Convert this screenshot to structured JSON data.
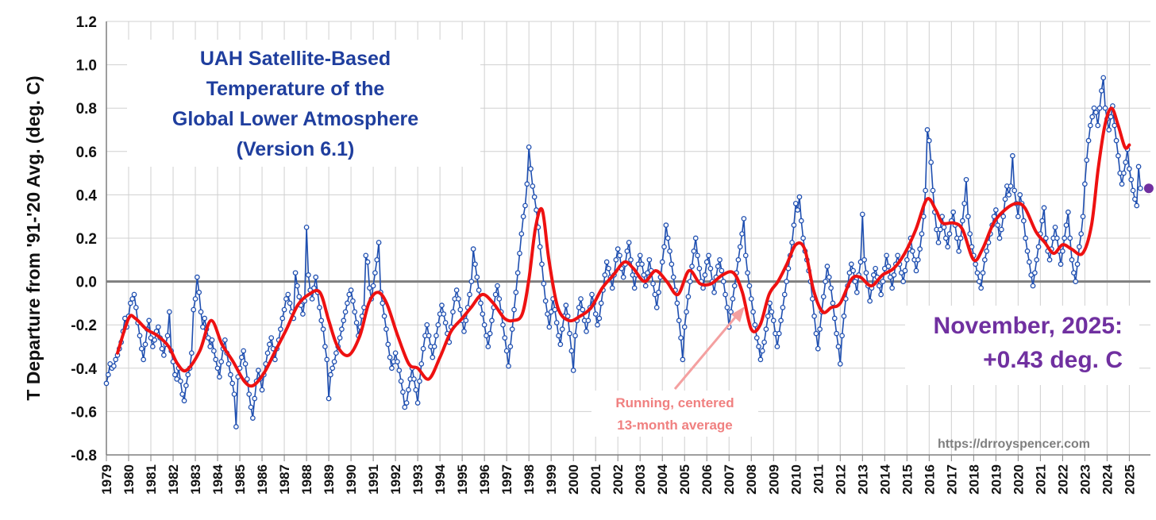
{
  "chart_data": {
    "type": "line",
    "title_lines": [
      "UAH Satellite-Based",
      "Temperature of the",
      "Global Lower Atmosphere",
      "(Version 6.1)"
    ],
    "ylabel": "T Departure from '91-'20 Avg. (deg. C)",
    "xlabel": "",
    "ylim": [
      -0.8,
      1.2
    ],
    "yticks": [
      "-0.8",
      "-0.6",
      "-0.4",
      "-0.2",
      "0.0",
      "0.2",
      "0.4",
      "0.6",
      "0.8",
      "1.0",
      "1.2"
    ],
    "xticks": [
      "1979",
      "1980",
      "1981",
      "1982",
      "1983",
      "1984",
      "1985",
      "1986",
      "1987",
      "1988",
      "1989",
      "1990",
      "1991",
      "1992",
      "1993",
      "1994",
      "1995",
      "1996",
      "1997",
      "1998",
      "1999",
      "2000",
      "2001",
      "2002",
      "2003",
      "2004",
      "2005",
      "2006",
      "2007",
      "2008",
      "2009",
      "2010",
      "2011",
      "2012",
      "2013",
      "2014",
      "2015",
      "2016",
      "2017",
      "2018",
      "2019",
      "2020",
      "2021",
      "2022",
      "2023",
      "2024",
      "2025"
    ],
    "xlim": [
      1979.0,
      2025.95
    ],
    "grid": true,
    "latest": {
      "label_line1": "November, 2025:",
      "label_line2": "+0.43 deg. C",
      "x": 2025.875,
      "value": 0.43,
      "color": "#7030a0"
    },
    "running_label_lines": [
      "Running, centered",
      "13-month average"
    ],
    "url": "https://drroyspencer.com",
    "colors": {
      "monthly": "#1f4fb0",
      "smooth": "#ee1111",
      "axis": "#7f7f7f",
      "grid": "#d0d0d0",
      "arrow": "#f4a0a0"
    },
    "series": [
      {
        "name": "Monthly anomaly",
        "start_year": 1979.0,
        "step": 0.08333333,
        "values": [
          -0.47,
          -0.43,
          -0.38,
          -0.4,
          -0.39,
          -0.36,
          -0.34,
          -0.31,
          -0.28,
          -0.23,
          -0.17,
          -0.21,
          -0.16,
          -0.1,
          -0.08,
          -0.06,
          -0.12,
          -0.19,
          -0.25,
          -0.31,
          -0.36,
          -0.29,
          -0.22,
          -0.18,
          -0.26,
          -0.3,
          -0.27,
          -0.23,
          -0.21,
          -0.26,
          -0.31,
          -0.34,
          -0.29,
          -0.25,
          -0.14,
          -0.32,
          -0.37,
          -0.43,
          -0.45,
          -0.4,
          -0.46,
          -0.52,
          -0.55,
          -0.48,
          -0.43,
          -0.4,
          -0.33,
          -0.13,
          -0.08,
          0.02,
          -0.05,
          -0.14,
          -0.21,
          -0.17,
          -0.22,
          -0.26,
          -0.3,
          -0.27,
          -0.32,
          -0.36,
          -0.4,
          -0.44,
          -0.37,
          -0.31,
          -0.27,
          -0.33,
          -0.38,
          -0.43,
          -0.47,
          -0.52,
          -0.67,
          -0.44,
          -0.4,
          -0.35,
          -0.32,
          -0.38,
          -0.45,
          -0.52,
          -0.58,
          -0.63,
          -0.54,
          -0.46,
          -0.41,
          -0.45,
          -0.5,
          -0.43,
          -0.38,
          -0.33,
          -0.29,
          -0.26,
          -0.31,
          -0.36,
          -0.31,
          -0.27,
          -0.22,
          -0.17,
          -0.13,
          -0.08,
          -0.06,
          -0.1,
          -0.14,
          -0.17,
          0.04,
          -0.02,
          -0.07,
          -0.11,
          -0.15,
          -0.09,
          0.25,
          0.03,
          -0.04,
          -0.08,
          -0.03,
          0.02,
          -0.05,
          -0.12,
          -0.18,
          -0.22,
          -0.3,
          -0.36,
          -0.54,
          -0.43,
          -0.4,
          -0.37,
          -0.33,
          -0.3,
          -0.26,
          -0.22,
          -0.18,
          -0.14,
          -0.1,
          -0.06,
          -0.04,
          -0.09,
          -0.14,
          -0.19,
          -0.25,
          -0.21,
          -0.16,
          -0.12,
          0.12,
          0.09,
          -0.03,
          -0.08,
          -0.02,
          0.04,
          0.1,
          0.18,
          -0.05,
          -0.1,
          -0.16,
          -0.22,
          -0.29,
          -0.35,
          -0.4,
          -0.37,
          -0.33,
          -0.37,
          -0.41,
          -0.46,
          -0.51,
          -0.58,
          -0.56,
          -0.5,
          -0.45,
          -0.4,
          -0.45,
          -0.5,
          -0.56,
          -0.46,
          -0.38,
          -0.31,
          -0.25,
          -0.2,
          -0.25,
          -0.3,
          -0.35,
          -0.3,
          -0.25,
          -0.2,
          -0.15,
          -0.11,
          -0.15,
          -0.19,
          -0.24,
          -0.28,
          -0.21,
          -0.14,
          -0.08,
          -0.04,
          -0.08,
          -0.13,
          -0.18,
          -0.23,
          -0.18,
          -0.12,
          -0.06,
          0.0,
          0.15,
          0.08,
          0.02,
          -0.04,
          -0.1,
          -0.15,
          -0.2,
          -0.25,
          -0.3,
          -0.24,
          -0.18,
          -0.12,
          -0.06,
          -0.02,
          -0.08,
          -0.14,
          -0.2,
          -0.26,
          -0.32,
          -0.39,
          -0.3,
          -0.22,
          -0.13,
          -0.05,
          0.04,
          0.13,
          0.22,
          0.3,
          0.35,
          0.45,
          0.62,
          0.52,
          0.44,
          0.39,
          0.33,
          0.25,
          0.16,
          0.08,
          -0.01,
          -0.09,
          -0.15,
          -0.21,
          -0.14,
          -0.08,
          -0.13,
          -0.19,
          -0.25,
          -0.29,
          -0.22,
          -0.16,
          -0.11,
          -0.16,
          -0.24,
          -0.32,
          -0.41,
          -0.25,
          -0.18,
          -0.12,
          -0.08,
          -0.13,
          -0.18,
          -0.23,
          -0.18,
          -0.12,
          -0.06,
          -0.1,
          -0.15,
          -0.2,
          -0.17,
          -0.1,
          -0.04,
          0.03,
          0.09,
          0.06,
          0.02,
          -0.03,
          0.03,
          0.1,
          0.15,
          0.12,
          0.06,
          0.02,
          0.08,
          0.14,
          0.18,
          0.1,
          0.03,
          -0.03,
          0.03,
          0.08,
          0.12,
          0.08,
          0.03,
          -0.02,
          0.04,
          0.1,
          0.05,
          -0.01,
          -0.06,
          -0.12,
          -0.05,
          0.02,
          0.09,
          0.16,
          0.26,
          0.2,
          0.14,
          0.08,
          0.02,
          -0.04,
          -0.1,
          -0.18,
          -0.26,
          -0.36,
          -0.21,
          -0.14,
          -0.07,
          0.0,
          0.07,
          0.14,
          0.2,
          0.12,
          0.06,
          0.0,
          -0.03,
          0.03,
          0.09,
          0.12,
          0.06,
          0.0,
          -0.05,
          0.02,
          0.07,
          0.1,
          0.05,
          0.0,
          -0.06,
          -0.12,
          -0.21,
          -0.14,
          -0.08,
          -0.02,
          0.04,
          0.1,
          0.16,
          0.22,
          0.29,
          0.12,
          0.04,
          -0.02,
          -0.08,
          -0.14,
          -0.2,
          -0.26,
          -0.3,
          -0.36,
          -0.32,
          -0.28,
          -0.22,
          -0.16,
          -0.1,
          -0.14,
          -0.18,
          -0.24,
          -0.3,
          -0.24,
          -0.18,
          -0.12,
          -0.06,
          0.0,
          0.06,
          0.12,
          0.18,
          0.26,
          0.36,
          0.33,
          0.39,
          0.28,
          0.2,
          0.14,
          0.1,
          0.05,
          0.0,
          -0.08,
          -0.16,
          -0.24,
          -0.31,
          -0.22,
          -0.14,
          -0.07,
          0.0,
          0.07,
          0.02,
          -0.03,
          -0.1,
          -0.17,
          -0.24,
          -0.3,
          -0.38,
          -0.25,
          -0.16,
          -0.08,
          -0.02,
          0.04,
          0.08,
          0.05,
          0.0,
          -0.05,
          0.03,
          0.09,
          0.31,
          0.1,
          0.04,
          -0.02,
          -0.09,
          -0.03,
          0.03,
          0.06,
          0.02,
          -0.02,
          -0.06,
          0.0,
          0.06,
          0.12,
          0.07,
          0.02,
          -0.03,
          0.03,
          0.08,
          0.12,
          0.08,
          0.04,
          0.0,
          0.05,
          0.1,
          0.15,
          0.2,
          0.14,
          0.1,
          0.05,
          0.1,
          0.15,
          0.22,
          0.3,
          0.42,
          0.7,
          0.65,
          0.55,
          0.42,
          0.32,
          0.24,
          0.18,
          0.24,
          0.3,
          0.25,
          0.2,
          0.16,
          0.22,
          0.28,
          0.32,
          0.26,
          0.2,
          0.14,
          0.2,
          0.28,
          0.36,
          0.47,
          0.3,
          0.22,
          0.16,
          0.12,
          0.08,
          0.04,
          0.0,
          -0.03,
          0.04,
          0.1,
          0.14,
          0.18,
          0.22,
          0.26,
          0.3,
          0.33,
          0.26,
          0.2,
          0.24,
          0.3,
          0.38,
          0.44,
          0.4,
          0.44,
          0.58,
          0.42,
          0.36,
          0.3,
          0.4,
          0.36,
          0.28,
          0.2,
          0.14,
          0.09,
          0.03,
          -0.02,
          0.04,
          0.1,
          0.16,
          0.22,
          0.28,
          0.34,
          0.2,
          0.14,
          0.1,
          0.15,
          0.2,
          0.25,
          0.2,
          0.14,
          0.08,
          0.14,
          0.2,
          0.26,
          0.32,
          0.2,
          0.1,
          0.04,
          0.0,
          0.08,
          0.16,
          0.22,
          0.3,
          0.45,
          0.56,
          0.65,
          0.72,
          0.76,
          0.8,
          0.78,
          0.72,
          0.8,
          0.88,
          0.94,
          0.8,
          0.75,
          0.7,
          0.76,
          0.81,
          0.72,
          0.65,
          0.58,
          0.5,
          0.45,
          0.5,
          0.55,
          0.61,
          0.52,
          0.47,
          0.42,
          0.38,
          0.35,
          0.53,
          0.43
        ]
      },
      {
        "name": "Running, centered 13-month average",
        "x": [
          1979.5,
          1980.0,
          1980.3,
          1980.8,
          1981.3,
          1981.8,
          1982.2,
          1982.6,
          1983.2,
          1983.7,
          1984.2,
          1984.7,
          1985.2,
          1985.6,
          1986.1,
          1986.6,
          1987.1,
          1987.6,
          1988.1,
          1988.6,
          1989.0,
          1989.4,
          1989.9,
          1990.4,
          1990.8,
          1991.2,
          1991.6,
          1992.1,
          1992.6,
          1993.0,
          1993.5,
          1994.0,
          1994.5,
          1995.0,
          1995.4,
          1995.9,
          1996.4,
          1996.9,
          1997.3,
          1997.7,
          1998.0,
          1998.3,
          1998.6,
          1998.9,
          1999.3,
          1999.8,
          2000.3,
          2000.8,
          2001.3,
          2001.8,
          2002.3,
          2002.7,
          2003.2,
          2003.7,
          2004.2,
          2004.7,
          2005.2,
          2005.7,
          2006.2,
          2006.7,
          2007.2,
          2007.6,
          2008.0,
          2008.4,
          2008.8,
          2009.2,
          2009.6,
          2010.0,
          2010.4,
          2010.8,
          2011.2,
          2011.6,
          2012.0,
          2012.5,
          2012.9,
          2013.4,
          2013.9,
          2014.4,
          2014.9,
          2015.4,
          2015.9,
          2016.3,
          2016.6,
          2017.1,
          2017.5,
          2018.0,
          2018.4,
          2018.9,
          2019.4,
          2019.9,
          2020.3,
          2020.8,
          2021.2,
          2021.6,
          2022.0,
          2022.4,
          2022.9,
          2023.3,
          2023.6,
          2023.9,
          2024.2,
          2024.5,
          2024.8,
          2025.0
        ]
      }
    ],
    "smooth_values": [
      -0.33,
      -0.17,
      -0.17,
      -0.22,
      -0.25,
      -0.3,
      -0.38,
      -0.41,
      -0.32,
      -0.18,
      -0.29,
      -0.37,
      -0.46,
      -0.48,
      -0.42,
      -0.32,
      -0.22,
      -0.11,
      -0.06,
      -0.05,
      -0.18,
      -0.3,
      -0.34,
      -0.25,
      -0.1,
      -0.05,
      -0.1,
      -0.25,
      -0.38,
      -0.4,
      -0.45,
      -0.35,
      -0.23,
      -0.17,
      -0.12,
      -0.06,
      -0.1,
      -0.17,
      -0.18,
      -0.15,
      0.01,
      0.25,
      0.33,
      0.1,
      -0.12,
      -0.18,
      -0.16,
      -0.12,
      -0.03,
      0.03,
      0.09,
      0.06,
      0.0,
      0.05,
      0.0,
      -0.06,
      0.05,
      -0.01,
      -0.01,
      0.03,
      0.04,
      -0.05,
      -0.22,
      -0.2,
      -0.06,
      0.0,
      0.08,
      0.17,
      0.15,
      -0.04,
      -0.14,
      -0.12,
      -0.1,
      0.01,
      0.02,
      -0.02,
      0.03,
      0.06,
      0.13,
      0.24,
      0.38,
      0.33,
      0.27,
      0.27,
      0.24,
      0.1,
      0.15,
      0.27,
      0.33,
      0.36,
      0.34,
      0.23,
      0.18,
      0.13,
      0.17,
      0.15,
      0.13,
      0.26,
      0.52,
      0.72,
      0.8,
      0.72,
      0.62,
      0.63
    ]
  }
}
